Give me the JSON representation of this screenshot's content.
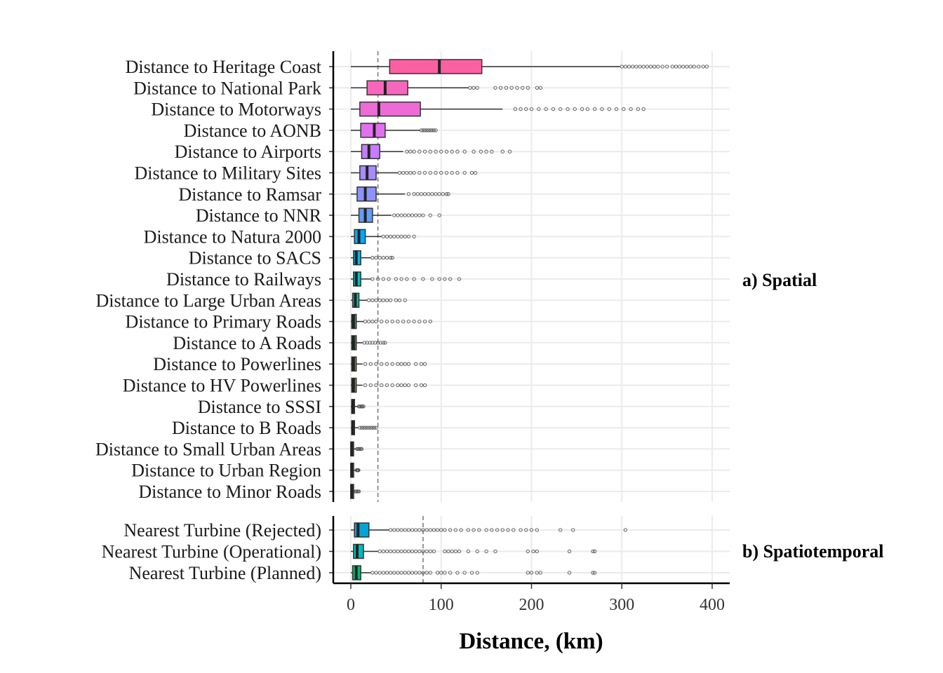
{
  "chart_data": {
    "type": "box",
    "xlabel": "Distance, (km)",
    "xlim": [
      0,
      400
    ],
    "xticks": [
      0,
      100,
      200,
      300,
      400
    ],
    "grid": true,
    "facets": [
      {
        "name": "a) Spatial",
        "reference_line": 30,
        "series": [
          {
            "label": "Distance to Heritage Coast",
            "color": "#FB61A2",
            "whisker_low": 0,
            "q1": 43,
            "median": 98,
            "q3": 145,
            "whisker_high": 298,
            "outliers": [
              300,
              304,
              308,
              312,
              316,
              320,
              324,
              328,
              332,
              336,
              340,
              345,
              350,
              356,
              360,
              364,
              368,
              372,
              376,
              380,
              385,
              390,
              394
            ]
          },
          {
            "label": "Distance to National Park",
            "color": "#F766BD",
            "whisker_low": 0,
            "q1": 18,
            "median": 38,
            "q3": 63,
            "whisker_high": 130,
            "outliers": [
              132,
              136,
              140,
              160,
              166,
              172,
              178,
              184,
              190,
              196,
              206,
              210
            ]
          },
          {
            "label": "Distance to Motorways",
            "color": "#EE6BD6",
            "whisker_low": 0,
            "q1": 10,
            "median": 31,
            "q3": 77,
            "whisker_high": 168,
            "outliers": [
              182,
              188,
              194,
              200,
              208,
              216,
              224,
              232,
              240,
              248,
              256,
              262,
              270,
              278,
              286,
              294,
              302,
              310,
              318,
              324
            ]
          },
          {
            "label": "Distance to AONB",
            "color": "#E070EE",
            "whisker_low": 0,
            "q1": 11,
            "median": 26,
            "q3": 38,
            "whisker_high": 77,
            "outliers": [
              78,
              80,
              82,
              84,
              86,
              88,
              90,
              92,
              94
            ]
          },
          {
            "label": "Distance to Airports",
            "color": "#C77CFF",
            "whisker_low": 0,
            "q1": 12,
            "median": 20,
            "q3": 32,
            "whisker_high": 58,
            "outliers": [
              62,
              66,
              70,
              76,
              82,
              88,
              94,
              100,
              106,
              112,
              118,
              126,
              136,
              144,
              150,
              156,
              168,
              176
            ]
          },
          {
            "label": "Distance to Military Sites",
            "color": "#A88BFF",
            "whisker_low": 0,
            "q1": 10,
            "median": 18,
            "q3": 28,
            "whisker_high": 52,
            "outliers": [
              54,
              58,
              62,
              66,
              70,
              76,
              82,
              88,
              94,
              100,
              106,
              112,
              118,
              126,
              134,
              138
            ]
          },
          {
            "label": "Distance to Ramsar",
            "color": "#8B93FF",
            "whisker_low": 0,
            "q1": 7,
            "median": 16,
            "q3": 28,
            "whisker_high": 60,
            "outliers": [
              64,
              70,
              74,
              78,
              82,
              86,
              90,
              94,
              98,
              102,
              106,
              108
            ]
          },
          {
            "label": "Distance to NNR",
            "color": "#619CFF",
            "whisker_low": 0,
            "q1": 9,
            "median": 16,
            "q3": 24,
            "whisker_high": 45,
            "outliers": [
              48,
              52,
              56,
              60,
              64,
              68,
              72,
              76,
              80,
              88,
              98
            ]
          },
          {
            "label": "Distance to Natura 2000",
            "color": "#00A9FF",
            "whisker_low": 0,
            "q1": 4,
            "median": 9,
            "q3": 16,
            "whisker_high": 34,
            "outliers": [
              36,
              40,
              44,
              48,
              52,
              56,
              60,
              64,
              70
            ]
          },
          {
            "label": "Distance to SACS",
            "color": "#00B8E7",
            "whisker_low": 0,
            "q1": 3,
            "median": 6,
            "q3": 11,
            "whisker_high": 22,
            "outliers": [
              24,
              28,
              32,
              36,
              40,
              44,
              46
            ]
          },
          {
            "label": "Distance to Railways",
            "color": "#00BFC4",
            "whisker_low": 0,
            "q1": 3,
            "median": 6,
            "q3": 11,
            "whisker_high": 22,
            "outliers": [
              24,
              30,
              36,
              42,
              50,
              56,
              62,
              70,
              80,
              90,
              98,
              104,
              110,
              120
            ]
          },
          {
            "label": "Distance to  Large Urban Areas",
            "color": "#00C1A9",
            "whisker_low": 0,
            "q1": 2,
            "median": 5,
            "q3": 9,
            "whisker_high": 18,
            "outliers": [
              20,
              24,
              28,
              32,
              36,
              40,
              44,
              50,
              54,
              60
            ]
          },
          {
            "label": "Distance to Primary Roads",
            "color": "#00BE67",
            "whisker_low": 0,
            "q1": 1,
            "median": 3,
            "q3": 6,
            "whisker_high": 14,
            "outliers": [
              16,
              20,
              24,
              28,
              34,
              40,
              46,
              52,
              58,
              64,
              70,
              76,
              82,
              88
            ]
          },
          {
            "label": "Distance to A Roads",
            "color": "#00BA38",
            "whisker_low": 0,
            "q1": 1,
            "median": 3,
            "q3": 6,
            "whisker_high": 13,
            "outliers": [
              15,
              18,
              21,
              24,
              27,
              30,
              33,
              36,
              38
            ]
          },
          {
            "label": "Distance to Powerlines",
            "color": "#53B400",
            "whisker_low": 0,
            "q1": 1,
            "median": 3,
            "q3": 6,
            "whisker_high": 13,
            "outliers": [
              16,
              22,
              28,
              34,
              40,
              46,
              52,
              56,
              60,
              64,
              72,
              78,
              82
            ]
          },
          {
            "label": "Distance to HV Powerlines",
            "color": "#7CAE00",
            "whisker_low": 0,
            "q1": 1,
            "median": 3,
            "q3": 6,
            "whisker_high": 13,
            "outliers": [
              16,
              22,
              28,
              34,
              40,
              46,
              52,
              56,
              60,
              64,
              72,
              78,
              82
            ]
          },
          {
            "label": "Distance to SSSI",
            "color": "#A3A500",
            "whisker_low": 0,
            "q1": 1,
            "median": 2,
            "q3": 4,
            "whisker_high": 8,
            "outliers": [
              9,
              10,
              11,
              12,
              13,
              14
            ]
          },
          {
            "label": "Distance to B Roads",
            "color": "#B79F00",
            "whisker_low": 0,
            "q1": 1,
            "median": 2,
            "q3": 4,
            "whisker_high": 8,
            "outliers": [
              10,
              12,
              14,
              16,
              18,
              20,
              22,
              24,
              26,
              28
            ]
          },
          {
            "label": "Distance to Small Urban Areas",
            "color": "#CD9600",
            "whisker_low": 0,
            "q1": 0,
            "median": 1,
            "q3": 3,
            "whisker_high": 6,
            "outliers": [
              7,
              8,
              9,
              10,
              11,
              12
            ]
          },
          {
            "label": "Distance to  Urban Region",
            "color": "#DE8C00",
            "whisker_low": 0,
            "q1": 0,
            "median": 1,
            "q3": 3,
            "whisker_high": 6,
            "outliers": [
              6.5,
              7,
              7.5,
              8,
              8.5
            ]
          },
          {
            "label": "Distance to Minor Roads",
            "color": "#E7861B",
            "whisker_low": 0,
            "q1": 0,
            "median": 1,
            "q3": 2,
            "whisker_high": 4,
            "outliers": [
              5,
              6,
              7,
              8,
              9
            ]
          }
        ]
      },
      {
        "name": "b) Spatiotemporal",
        "reference_line": 80,
        "series": [
          {
            "label": "Nearest Turbine (Rejected)",
            "color": "#00A5D8",
            "whisker_low": 0,
            "q1": 4,
            "median": 8,
            "q3": 20,
            "whisker_high": 42,
            "outliers": [
              44,
              48,
              52,
              56,
              60,
              64,
              68,
              72,
              76,
              80,
              84,
              88,
              92,
              96,
              100,
              104,
              110,
              116,
              122,
              130,
              136,
              142,
              150,
              156,
              162,
              168,
              174,
              180,
              188,
              194,
              200,
              206,
              232,
              246,
              304
            ]
          },
          {
            "label": "Nearest Turbine (Operational)",
            "color": "#00B8C2",
            "whisker_low": 0,
            "q1": 3,
            "median": 7,
            "q3": 14,
            "whisker_high": 30,
            "outliers": [
              32,
              36,
              40,
              44,
              48,
              52,
              56,
              60,
              64,
              68,
              72,
              76,
              80,
              84,
              88,
              92,
              104,
              108,
              112,
              116,
              120,
              130,
              140,
              150,
              160,
              196,
              202,
              206,
              242,
              268,
              270
            ]
          },
          {
            "label": "Nearest Turbine (Planned)",
            "color": "#00BA72",
            "whisker_low": 0,
            "q1": 2,
            "median": 6,
            "q3": 11,
            "whisker_high": 22,
            "outliers": [
              24,
              28,
              32,
              36,
              40,
              44,
              48,
              52,
              56,
              60,
              64,
              68,
              72,
              76,
              80,
              84,
              88,
              96,
              100,
              104,
              110,
              118,
              126,
              134,
              140,
              196,
              200,
              206,
              210,
              242,
              268,
              270
            ]
          }
        ]
      }
    ]
  }
}
